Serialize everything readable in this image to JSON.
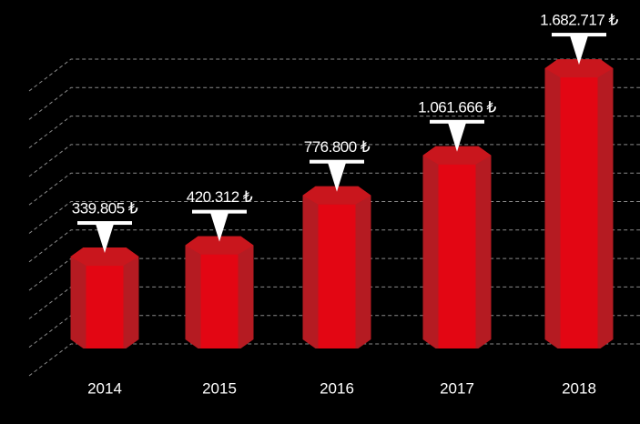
{
  "chart_data": {
    "type": "bar",
    "categories": [
      "2014",
      "2015",
      "2016",
      "2017",
      "2018"
    ],
    "values": [
      339805,
      420312,
      776800,
      1061666,
      1682717
    ],
    "value_labels": [
      "339.805 ₺",
      "420.312 ₺",
      "776.800 ₺",
      "1.061.666 ₺",
      "1.682.717 ₺"
    ],
    "color": "#e30613",
    "ylim": [
      -380000,
      1800000
    ]
  }
}
